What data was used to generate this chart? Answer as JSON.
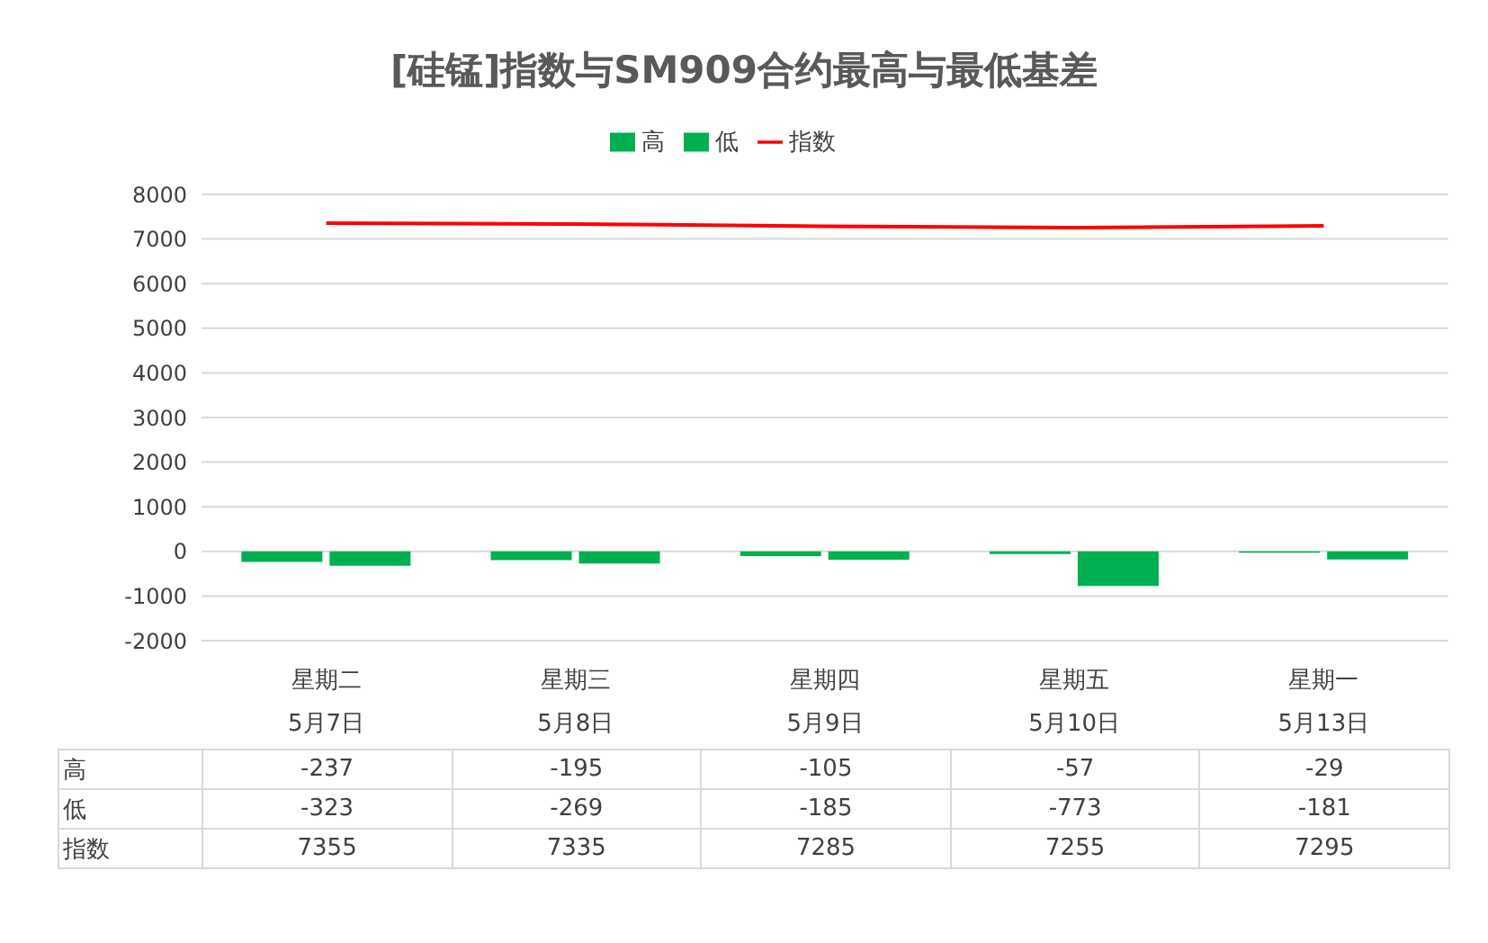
{
  "chart_data": {
    "type": "bar",
    "title": "[硅锰]指数与SM909合约最高与最低基差",
    "categories": [
      "星期二\n5月7日",
      "星期三\n5月8日",
      "星期四\n5月9日",
      "星期五\n5月10日",
      "星期一\n5月13日"
    ],
    "series": [
      {
        "name": "高",
        "color": "#00b050",
        "values": [
          -237,
          -195,
          -105,
          -57,
          -29
        ]
      },
      {
        "name": "低",
        "color": "#00b050",
        "values": [
          -323,
          -269,
          -185,
          -773,
          -181
        ]
      },
      {
        "name": "指数",
        "type": "line",
        "color": "#ff0000",
        "values": [
          7355,
          7335,
          7285,
          7255,
          7295
        ]
      }
    ],
    "ylim": [
      -2000,
      8000
    ],
    "yticks": [
      -2000,
      -1000,
      0,
      1000,
      2000,
      3000,
      4000,
      5000,
      6000,
      7000,
      8000
    ],
    "grid": "y",
    "legend": "top",
    "data_labels": true
  }
}
